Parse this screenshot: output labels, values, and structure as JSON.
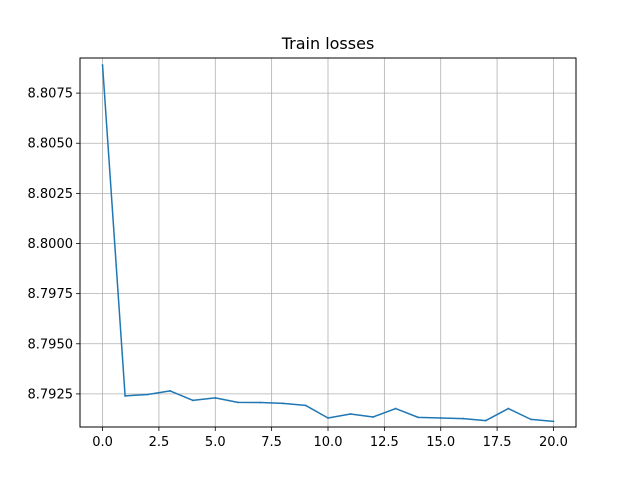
{
  "chart_data": {
    "type": "line",
    "title": "Train losses",
    "xlabel": "",
    "ylabel": "",
    "grid": true,
    "xlim": [
      -1.0,
      21.0
    ],
    "ylim": [
      8.79085,
      8.80925
    ],
    "x_ticks": [
      0.0,
      2.5,
      5.0,
      7.5,
      10.0,
      12.5,
      15.0,
      17.5,
      20.0
    ],
    "x_tick_labels": [
      "0.0",
      "2.5",
      "5.0",
      "7.5",
      "10.0",
      "12.5",
      "15.0",
      "17.5",
      "20.0"
    ],
    "y_ticks": [
      8.7925,
      8.795,
      8.7975,
      8.8,
      8.8025,
      8.805,
      8.8075
    ],
    "y_tick_labels": [
      "8.7925",
      "8.7950",
      "8.7975",
      "8.8000",
      "8.8025",
      "8.8050",
      "8.8075"
    ],
    "series": [
      {
        "color": "#1f77b4",
        "x": [
          0,
          1,
          2,
          3,
          4,
          5,
          6,
          7,
          8,
          9,
          10,
          11,
          12,
          13,
          14,
          15,
          16,
          17,
          18,
          19,
          20
        ],
        "values": [
          8.8089,
          8.7924,
          8.79247,
          8.79265,
          8.79218,
          8.7923,
          8.79208,
          8.79207,
          8.79203,
          8.79193,
          8.7913,
          8.7915,
          8.79135,
          8.79177,
          8.79133,
          8.7913,
          8.79127,
          8.79117,
          8.79177,
          8.79123,
          8.79113
        ]
      }
    ]
  }
}
